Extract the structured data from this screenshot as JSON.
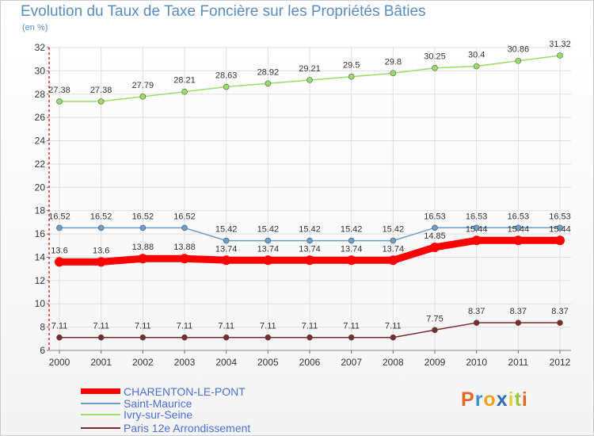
{
  "chart_data": {
    "type": "line",
    "title": "Evolution du Taux de Taxe Foncière sur les Propriétés Bâties",
    "ylabel": "(en %)",
    "xlabel": "",
    "x": [
      "2000",
      "2001",
      "2002",
      "2003",
      "2004",
      "2005",
      "2006",
      "2007",
      "2008",
      "2009",
      "2010",
      "2011",
      "2012"
    ],
    "ylim": [
      6,
      32
    ],
    "yticks": [
      6,
      8,
      10,
      12,
      14,
      16,
      18,
      20,
      22,
      24,
      26,
      28,
      30,
      32
    ],
    "grid": true,
    "legend": "bottom-left",
    "series": [
      {
        "name": "CHARENTON-LE-PONT",
        "color": "#ff0000",
        "values": [
          13.6,
          13.6,
          13.88,
          13.88,
          13.74,
          13.74,
          13.74,
          13.74,
          13.74,
          14.85,
          15.44,
          15.44,
          15.44
        ],
        "labels": [
          "13.6",
          "13.6",
          "13.88",
          "13.88",
          "13.74",
          "13.74",
          "13.74",
          "13.74",
          "13.74",
          "14.85",
          "15.44",
          "15.44",
          "15.44"
        ]
      },
      {
        "name": "Saint-Maurice",
        "color": "#6a9fcb",
        "values": [
          16.52,
          16.52,
          16.52,
          16.52,
          15.42,
          15.42,
          15.42,
          15.42,
          15.42,
          16.53,
          16.53,
          16.53,
          16.53
        ],
        "labels": [
          "16.52",
          "16.52",
          "16.52",
          "16.52",
          "15.42",
          "15.42",
          "15.42",
          "15.42",
          "15.42",
          "16.53",
          "16.53",
          "16.53",
          "16.53"
        ]
      },
      {
        "name": "Ivry-sur-Seine",
        "color": "#99dd66",
        "values": [
          27.38,
          27.38,
          27.79,
          28.21,
          28.63,
          28.92,
          29.21,
          29.5,
          29.8,
          30.25,
          30.4,
          30.86,
          31.32
        ],
        "labels": [
          "27.38",
          "27.38",
          "27.79",
          "28.21",
          "28.63",
          "28.92",
          "29.21",
          "29.5",
          "29.8",
          "30.25",
          "30.4",
          "30.86",
          "31.32"
        ]
      },
      {
        "name": "Paris 12e  Arrondissement",
        "color": "#7a2c2c",
        "values": [
          7.11,
          7.11,
          7.11,
          7.11,
          7.11,
          7.11,
          7.11,
          7.11,
          7.11,
          7.75,
          8.37,
          8.37,
          8.37
        ],
        "labels": [
          "7.11",
          "7.11",
          "7.11",
          "7.11",
          "7.11",
          "7.11",
          "7.11",
          "7.11",
          "7.11",
          "7.75",
          "8.37",
          "8.37",
          "8.37"
        ]
      }
    ]
  },
  "logo": {
    "letters": [
      "P",
      "r",
      "o",
      "x",
      "i",
      "t",
      "i"
    ],
    "colors": [
      "#e4672a",
      "#3d8fd8",
      "#f2a21c",
      "#2f6db8",
      "#e0d13b",
      "#9bc53d",
      "#e4672a"
    ]
  }
}
